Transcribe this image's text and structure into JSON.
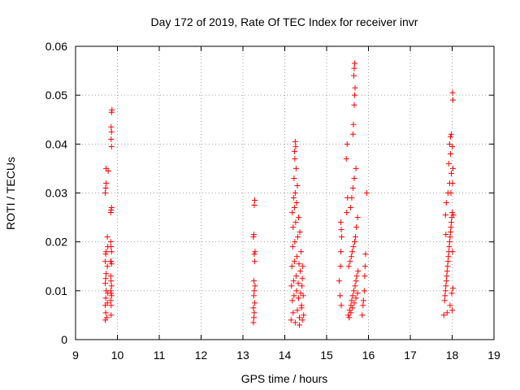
{
  "chart_data": {
    "type": "scatter",
    "title": "Day 172 of 2019, Rate Of TEC Index for receiver invr",
    "xlabel": "GPS time / hours",
    "ylabel": "ROTI / TECUs",
    "xlim": [
      9,
      19
    ],
    "ylim": [
      0,
      0.06
    ],
    "xticks": [
      9,
      10,
      11,
      12,
      13,
      14,
      15,
      16,
      17,
      18,
      19
    ],
    "yticks": [
      0,
      0.01,
      0.02,
      0.03,
      0.04,
      0.05,
      0.06
    ],
    "xtick_labels": [
      "9",
      "10",
      "11",
      "12",
      "13",
      "14",
      "15",
      "16",
      "17",
      "18",
      "19"
    ],
    "ytick_labels": [
      "0",
      "0.01",
      "0.02",
      "0.03",
      "0.04",
      "0.05",
      "0.06"
    ],
    "grid": true,
    "legend": "none",
    "marker": "plus",
    "color": "#ff0000",
    "series": [
      {
        "name": "ROTI",
        "points": [
          [
            9.71,
            0.004
          ],
          [
            9.72,
            0.0055
          ],
          [
            9.71,
            0.007
          ],
          [
            9.72,
            0.0085
          ],
          [
            9.73,
            0.01
          ],
          [
            9.71,
            0.0115
          ],
          [
            9.72,
            0.0125
          ],
          [
            9.73,
            0.0135
          ],
          [
            9.71,
            0.016
          ],
          [
            9.72,
            0.0175
          ],
          [
            9.73,
            0.018
          ],
          [
            9.71,
            0.03
          ],
          [
            9.72,
            0.031
          ],
          [
            9.73,
            0.032
          ],
          [
            9.73,
            0.035
          ],
          [
            9.75,
            0.0045
          ],
          [
            9.76,
            0.0075
          ],
          [
            9.77,
            0.0095
          ],
          [
            9.76,
            0.015
          ],
          [
            9.77,
            0.019
          ],
          [
            9.78,
            0.0345
          ],
          [
            9.76,
            0.021
          ],
          [
            9.84,
            0.026
          ],
          [
            9.85,
            0.0265
          ],
          [
            9.86,
            0.027
          ],
          [
            9.84,
            0.02
          ],
          [
            9.85,
            0.019
          ],
          [
            9.86,
            0.018
          ],
          [
            9.84,
            0.016
          ],
          [
            9.85,
            0.016
          ],
          [
            9.86,
            0.0155
          ],
          [
            9.84,
            0.013
          ],
          [
            9.85,
            0.012
          ],
          [
            9.86,
            0.011
          ],
          [
            9.84,
            0.01
          ],
          [
            9.85,
            0.0095
          ],
          [
            9.86,
            0.009
          ],
          [
            9.84,
            0.008
          ],
          [
            9.85,
            0.007
          ],
          [
            9.85,
            0.005
          ],
          [
            9.86,
            0.0395
          ],
          [
            9.85,
            0.041
          ],
          [
            9.86,
            0.0425
          ],
          [
            9.85,
            0.0435
          ],
          [
            9.86,
            0.0465
          ],
          [
            9.87,
            0.047
          ],
          [
            13.25,
            0.0035
          ],
          [
            13.26,
            0.0045
          ],
          [
            13.27,
            0.0055
          ],
          [
            13.25,
            0.0065
          ],
          [
            13.28,
            0.0075
          ],
          [
            13.26,
            0.009
          ],
          [
            13.27,
            0.01
          ],
          [
            13.29,
            0.011
          ],
          [
            13.26,
            0.012
          ],
          [
            13.28,
            0.016
          ],
          [
            13.27,
            0.0175
          ],
          [
            13.29,
            0.018
          ],
          [
            13.25,
            0.021
          ],
          [
            13.26,
            0.0215
          ],
          [
            13.27,
            0.0275
          ],
          [
            13.28,
            0.0285
          ],
          [
            14.15,
            0.004
          ],
          [
            14.2,
            0.0055
          ],
          [
            14.25,
            0.0035
          ],
          [
            14.3,
            0.006
          ],
          [
            14.35,
            0.0045
          ],
          [
            14.4,
            0.007
          ],
          [
            14.45,
            0.005
          ],
          [
            14.18,
            0.008
          ],
          [
            14.22,
            0.009
          ],
          [
            14.28,
            0.01
          ],
          [
            14.33,
            0.0085
          ],
          [
            14.38,
            0.0095
          ],
          [
            14.16,
            0.011
          ],
          [
            14.21,
            0.012
          ],
          [
            14.27,
            0.013
          ],
          [
            14.32,
            0.0115
          ],
          [
            14.37,
            0.014
          ],
          [
            14.42,
            0.0125
          ],
          [
            14.17,
            0.015
          ],
          [
            14.23,
            0.016
          ],
          [
            14.29,
            0.017
          ],
          [
            14.34,
            0.0155
          ],
          [
            14.39,
            0.018
          ],
          [
            14.19,
            0.019
          ],
          [
            14.24,
            0.02
          ],
          [
            14.31,
            0.021
          ],
          [
            14.36,
            0.022
          ],
          [
            14.2,
            0.023
          ],
          [
            14.26,
            0.024
          ],
          [
            14.33,
            0.025
          ],
          [
            14.18,
            0.026
          ],
          [
            14.23,
            0.027
          ],
          [
            14.28,
            0.028
          ],
          [
            14.21,
            0.029
          ],
          [
            14.25,
            0.03
          ],
          [
            14.3,
            0.0315
          ],
          [
            14.22,
            0.033
          ],
          [
            14.27,
            0.035
          ],
          [
            14.24,
            0.037
          ],
          [
            14.23,
            0.0385
          ],
          [
            14.26,
            0.0395
          ],
          [
            14.25,
            0.0405
          ],
          [
            14.35,
            0.003
          ],
          [
            14.42,
            0.004
          ],
          [
            14.44,
            0.009
          ],
          [
            14.41,
            0.011
          ],
          [
            14.43,
            0.015
          ],
          [
            14.4,
            0.0065
          ],
          [
            15.3,
            0.012
          ],
          [
            15.32,
            0.009
          ],
          [
            15.35,
            0.007
          ],
          [
            15.33,
            0.015
          ],
          [
            15.34,
            0.018
          ],
          [
            15.36,
            0.021
          ],
          [
            15.35,
            0.0225
          ],
          [
            15.34,
            0.024
          ],
          [
            15.47,
            0.037
          ],
          [
            15.49,
            0.04
          ],
          [
            15.5,
            0.029
          ],
          [
            15.48,
            0.026
          ],
          [
            15.52,
            0.005
          ],
          [
            15.55,
            0.006
          ],
          [
            15.58,
            0.007
          ],
          [
            15.6,
            0.008
          ],
          [
            15.62,
            0.009
          ],
          [
            15.65,
            0.01
          ],
          [
            15.68,
            0.011
          ],
          [
            15.7,
            0.012
          ],
          [
            15.72,
            0.013
          ],
          [
            15.75,
            0.014
          ],
          [
            15.53,
            0.015
          ],
          [
            15.56,
            0.016
          ],
          [
            15.59,
            0.017
          ],
          [
            15.61,
            0.018
          ],
          [
            15.64,
            0.019
          ],
          [
            15.67,
            0.02
          ],
          [
            15.69,
            0.021
          ],
          [
            15.71,
            0.023
          ],
          [
            15.74,
            0.025
          ],
          [
            15.57,
            0.027
          ],
          [
            15.6,
            0.029
          ],
          [
            15.63,
            0.031
          ],
          [
            15.66,
            0.033
          ],
          [
            15.7,
            0.035
          ],
          [
            15.54,
            0.0045
          ],
          [
            15.58,
            0.0055
          ],
          [
            15.62,
            0.0065
          ],
          [
            15.66,
            0.0075
          ],
          [
            15.7,
            0.0085
          ],
          [
            15.74,
            0.0095
          ],
          [
            15.63,
            0.042
          ],
          [
            15.64,
            0.044
          ],
          [
            15.66,
            0.048
          ],
          [
            15.67,
            0.05
          ],
          [
            15.68,
            0.0515
          ],
          [
            15.65,
            0.054
          ],
          [
            15.66,
            0.0555
          ],
          [
            15.67,
            0.0565
          ],
          [
            15.85,
            0.005
          ],
          [
            15.88,
            0.008
          ],
          [
            15.9,
            0.01
          ],
          [
            15.92,
            0.015
          ],
          [
            15.93,
            0.0175
          ],
          [
            15.96,
            0.03
          ],
          [
            15.87,
            0.007
          ],
          [
            15.91,
            0.013
          ],
          [
            17.8,
            0.005
          ],
          [
            17.82,
            0.008
          ],
          [
            17.84,
            0.01
          ],
          [
            17.86,
            0.012
          ],
          [
            17.88,
            0.014
          ],
          [
            17.9,
            0.016
          ],
          [
            17.92,
            0.018
          ],
          [
            17.94,
            0.02
          ],
          [
            17.96,
            0.022
          ],
          [
            17.98,
            0.024
          ],
          [
            18.0,
            0.026
          ],
          [
            17.83,
            0.009
          ],
          [
            17.85,
            0.011
          ],
          [
            17.87,
            0.013
          ],
          [
            17.89,
            0.015
          ],
          [
            17.91,
            0.017
          ],
          [
            17.93,
            0.019
          ],
          [
            17.95,
            0.021
          ],
          [
            17.97,
            0.023
          ],
          [
            17.99,
            0.025
          ],
          [
            17.86,
            0.028
          ],
          [
            17.9,
            0.03
          ],
          [
            17.94,
            0.032
          ],
          [
            17.98,
            0.034
          ],
          [
            17.92,
            0.036
          ],
          [
            17.96,
            0.038
          ],
          [
            17.94,
            0.04
          ],
          [
            17.98,
            0.042
          ],
          [
            17.96,
            0.0415
          ],
          [
            18.0,
            0.006
          ],
          [
            17.88,
            0.0055
          ],
          [
            17.95,
            0.007
          ],
          [
            17.99,
            0.0095
          ],
          [
            18.02,
            0.0105
          ],
          [
            18.01,
            0.018
          ],
          [
            18.03,
            0.0255
          ],
          [
            18.01,
            0.032
          ],
          [
            18.02,
            0.035
          ],
          [
            18.0,
            0.0395
          ],
          [
            18.02,
            0.049
          ],
          [
            18.01,
            0.0505
          ],
          [
            17.85,
            0.0215
          ],
          [
            17.84,
            0.0255
          ],
          [
            17.97,
            0.03
          ]
        ]
      }
    ]
  }
}
